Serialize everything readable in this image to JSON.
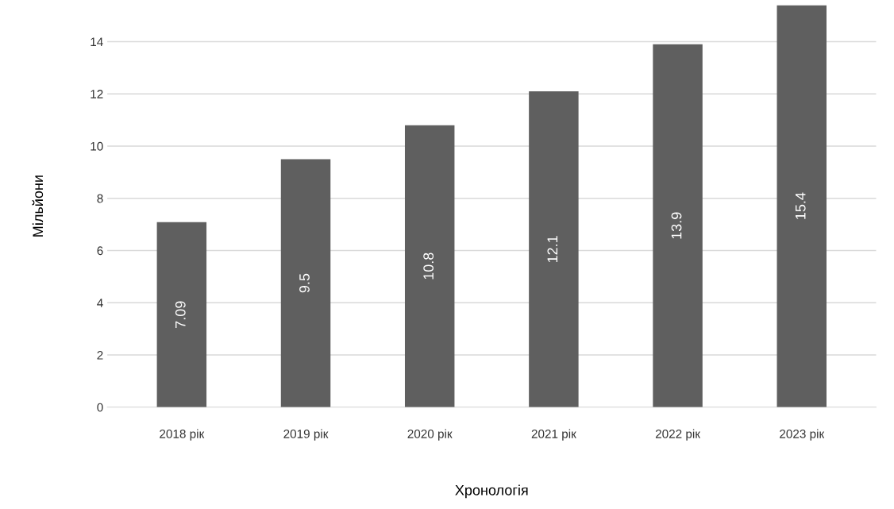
{
  "chart_data": {
    "type": "bar",
    "xlabel": "Хронологія",
    "ylabel": "Мільйони",
    "categories": [
      "2018 рік",
      "2019 рік",
      "2020 рік",
      "2021 рік",
      "2022 рік",
      "2023 рік"
    ],
    "values": [
      7.09,
      9.5,
      10.8,
      12.1,
      13.9,
      15.4
    ],
    "color": "#5f5f5f",
    "ylim": [
      0,
      15.4
    ],
    "yticks": [
      0,
      2,
      4,
      6,
      8,
      10,
      12,
      14
    ],
    "grid": "y",
    "data_labels": true
  }
}
